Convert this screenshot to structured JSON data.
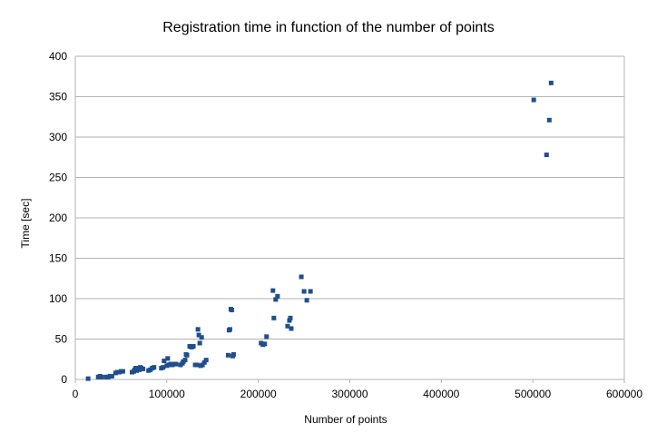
{
  "chart_data": {
    "type": "scatter",
    "title": "Registration time in function of the number of points",
    "xlabel": "Number of points",
    "ylabel": "Time [sec]",
    "xlim": [
      0,
      600000
    ],
    "ylim": [
      0,
      400
    ],
    "x_ticks": [
      0,
      100000,
      200000,
      300000,
      400000,
      500000,
      600000
    ],
    "y_ticks": [
      0,
      50,
      100,
      150,
      200,
      250,
      300,
      350,
      400
    ],
    "grid": "horizontal",
    "legend": "none",
    "colors": {
      "marker": "#1f4e8c",
      "grid": "#b3b3b3",
      "axis": "#b3b3b3"
    },
    "series": [
      {
        "points": [
          [
            14000,
            1
          ],
          [
            25000,
            3
          ],
          [
            27000,
            4
          ],
          [
            29000,
            3
          ],
          [
            34000,
            3
          ],
          [
            36000,
            3
          ],
          [
            38000,
            4
          ],
          [
            40000,
            4
          ],
          [
            44000,
            8
          ],
          [
            46000,
            9
          ],
          [
            48000,
            9
          ],
          [
            50000,
            10
          ],
          [
            52000,
            10
          ],
          [
            62000,
            9
          ],
          [
            64000,
            10
          ],
          [
            65000,
            12
          ],
          [
            66000,
            14
          ],
          [
            67000,
            11
          ],
          [
            68000,
            13
          ],
          [
            70000,
            12
          ],
          [
            71000,
            15
          ],
          [
            72000,
            14
          ],
          [
            74000,
            13
          ],
          [
            80000,
            11
          ],
          [
            82000,
            12
          ],
          [
            84000,
            14
          ],
          [
            86000,
            15
          ],
          [
            94000,
            14
          ],
          [
            96000,
            15
          ],
          [
            97000,
            23
          ],
          [
            100000,
            17
          ],
          [
            101000,
            26
          ],
          [
            102000,
            18
          ],
          [
            104000,
            19
          ],
          [
            106000,
            18
          ],
          [
            108000,
            19
          ],
          [
            110000,
            19
          ],
          [
            115000,
            18
          ],
          [
            117000,
            20
          ],
          [
            118000,
            22
          ],
          [
            120000,
            24
          ],
          [
            121000,
            31
          ],
          [
            122000,
            30
          ],
          [
            125000,
            41
          ],
          [
            127000,
            40
          ],
          [
            129000,
            41
          ],
          [
            131000,
            18
          ],
          [
            133000,
            18
          ],
          [
            134000,
            62
          ],
          [
            135000,
            55
          ],
          [
            136000,
            45
          ],
          [
            137000,
            17
          ],
          [
            138000,
            52
          ],
          [
            139000,
            18
          ],
          [
            141000,
            21
          ],
          [
            143000,
            24
          ],
          [
            167000,
            30
          ],
          [
            168000,
            61
          ],
          [
            169000,
            62
          ],
          [
            170000,
            87
          ],
          [
            171000,
            86
          ],
          [
            172000,
            29
          ],
          [
            173000,
            31
          ],
          [
            203000,
            45
          ],
          [
            205000,
            43
          ],
          [
            207000,
            44
          ],
          [
            209000,
            53
          ],
          [
            216000,
            110
          ],
          [
            217000,
            76
          ],
          [
            219000,
            99
          ],
          [
            221000,
            103
          ],
          [
            232000,
            66
          ],
          [
            234000,
            73
          ],
          [
            235000,
            76
          ],
          [
            236000,
            63
          ],
          [
            247000,
            127
          ],
          [
            250000,
            109
          ],
          [
            253000,
            98
          ],
          [
            257000,
            109
          ],
          [
            501000,
            346
          ],
          [
            515000,
            278
          ],
          [
            518000,
            321
          ],
          [
            520000,
            367
          ]
        ]
      }
    ]
  }
}
